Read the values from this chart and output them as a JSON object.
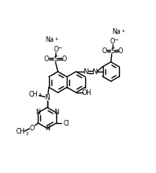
{
  "bg": "#ffffff",
  "lc": "#000000",
  "lw": 1.0,
  "fs": 5.8,
  "figsize": [
    1.94,
    2.15
  ],
  "dpi": 100,
  "xlim": [
    0,
    194
  ],
  "ylim": [
    0,
    215
  ]
}
